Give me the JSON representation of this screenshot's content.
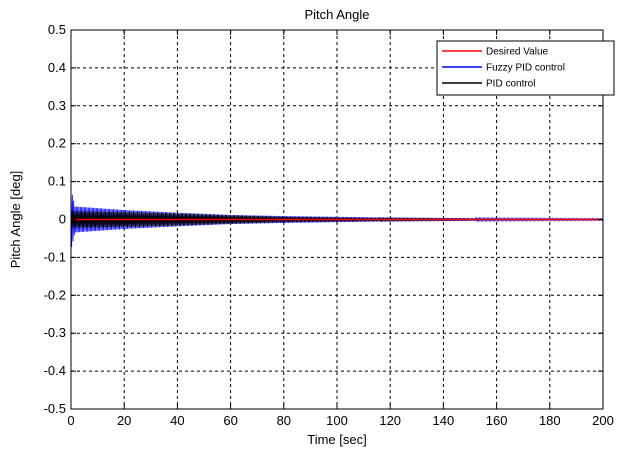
{
  "chart_data": {
    "type": "line",
    "title": "Pitch Angle",
    "xlabel": "Time [sec]",
    "ylabel": "Pitch Angle [deg]",
    "xlim": [
      0,
      200
    ],
    "ylim": [
      -0.5,
      0.5
    ],
    "xticks": [
      0,
      20,
      40,
      60,
      80,
      100,
      120,
      140,
      160,
      180,
      200
    ],
    "yticks": [
      -0.5,
      -0.4,
      -0.3,
      -0.2,
      -0.1,
      0,
      0.1,
      0.2,
      0.3,
      0.4,
      0.5
    ],
    "xtick_labels": [
      "0",
      "20",
      "40",
      "60",
      "80",
      "100",
      "120",
      "140",
      "160",
      "180",
      "200"
    ],
    "ytick_labels": [
      "-0.5",
      "-0.4",
      "-0.3",
      "-0.2",
      "-0.1",
      "0",
      "0.1",
      "0.2",
      "0.3",
      "0.4",
      "0.5"
    ],
    "grid": true,
    "grid_style": "dashed",
    "legend_position": "top-right",
    "series": [
      {
        "name": "Desired Value",
        "color": "#ff0000",
        "style": "constant",
        "value": 0
      },
      {
        "name": "Fuzzy PID control",
        "color": "#0000ff",
        "style": "decaying-oscillation",
        "peak": 0.08,
        "envelope": [
          [
            0,
            0.035
          ],
          [
            20,
            0.025
          ],
          [
            40,
            0.018
          ],
          [
            60,
            0.012
          ],
          [
            80,
            0.009
          ],
          [
            100,
            0.007
          ],
          [
            120,
            0.005
          ],
          [
            140,
            0.004
          ],
          [
            160,
            0.003
          ],
          [
            200,
            0.002
          ]
        ]
      },
      {
        "name": "PID control",
        "color": "#000000",
        "style": "decaying-oscillation",
        "peak": 0.02,
        "envelope": [
          [
            0,
            0.022
          ],
          [
            20,
            0.02
          ],
          [
            40,
            0.016
          ],
          [
            60,
            0.011
          ],
          [
            80,
            0.007
          ],
          [
            100,
            0.005
          ],
          [
            120,
            0.003
          ],
          [
            140,
            0.002
          ],
          [
            160,
            0.001
          ],
          [
            200,
            0.001
          ]
        ]
      }
    ]
  }
}
